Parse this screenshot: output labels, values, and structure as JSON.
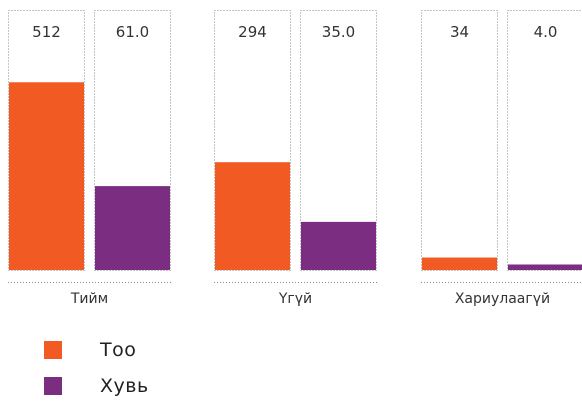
{
  "chart_data": {
    "type": "bar",
    "categories": [
      "Тийм",
      "Үгүй",
      "Хариулаагүй"
    ],
    "series": [
      {
        "name": "Тоо",
        "values": [
          512,
          294,
          34
        ],
        "labels": [
          "512",
          "294",
          "34"
        ],
        "color": "#f15a22"
      },
      {
        "name": "Хувь",
        "values": [
          61.0,
          35.0,
          4.0
        ],
        "labels": [
          "61.0",
          "35.0",
          "4.0"
        ],
        "color": "#7b2d82"
      }
    ],
    "grid": false,
    "legend": "bottom-left"
  }
}
